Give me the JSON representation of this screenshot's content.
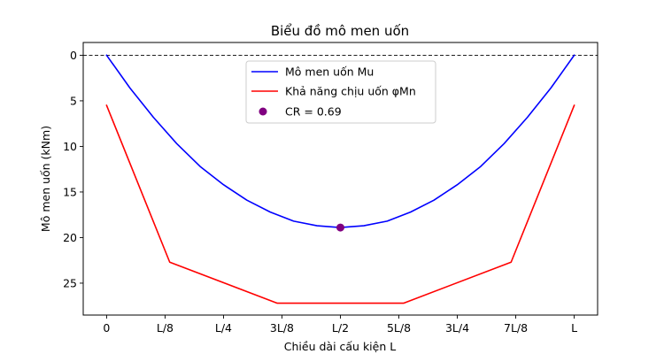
{
  "chart_data": {
    "type": "line",
    "title": "Biểu đồ mô men uốn",
    "xlabel": "Chiều dài cấu kiện L",
    "ylabel": "Mô men uốn (kNm)",
    "x_unit": "fraction of L",
    "xlim": [
      -0.05,
      1.05
    ],
    "ylim": [
      28.5,
      -1.4
    ],
    "y_inverted": true,
    "x_ticks": [
      {
        "value": 0,
        "label": "0"
      },
      {
        "value": 0.125,
        "label": "L/8"
      },
      {
        "value": 0.25,
        "label": "L/4"
      },
      {
        "value": 0.375,
        "label": "3L/8"
      },
      {
        "value": 0.5,
        "label": "L/2"
      },
      {
        "value": 0.625,
        "label": "5L/8"
      },
      {
        "value": 0.75,
        "label": "3L/4"
      },
      {
        "value": 0.875,
        "label": "7L/8"
      },
      {
        "value": 1,
        "label": "L"
      }
    ],
    "y_ticks": [
      0,
      5,
      10,
      15,
      20,
      25
    ],
    "zero_line": {
      "value": 0,
      "style": "dashed",
      "color": "#000000"
    },
    "legend_position": "upper-center",
    "series": [
      {
        "name": "Mô men uốn Mu",
        "color": "#0000ff",
        "x": [
          0,
          0.05,
          0.1,
          0.15,
          0.2,
          0.25,
          0.3,
          0.35,
          0.4,
          0.45,
          0.5,
          0.55,
          0.6,
          0.65,
          0.7,
          0.75,
          0.8,
          0.85,
          0.9,
          0.95,
          1
        ],
        "y": [
          0,
          3.6,
          6.8,
          9.7,
          12.2,
          14.2,
          15.9,
          17.2,
          18.2,
          18.7,
          18.9,
          18.7,
          18.2,
          17.2,
          15.9,
          14.2,
          12.2,
          9.7,
          6.8,
          3.6,
          0
        ]
      },
      {
        "name": "Khả năng chịu uốn φMn",
        "color": "#ff0000",
        "x": [
          0,
          0.135,
          0.365,
          0.635,
          0.865,
          1
        ],
        "y": [
          5.5,
          22.7,
          27.2,
          27.2,
          22.7,
          5.5
        ]
      }
    ],
    "points": [
      {
        "name": "CR = 0.69",
        "color": "#800080",
        "x": 0.5,
        "y": 18.9
      }
    ]
  }
}
